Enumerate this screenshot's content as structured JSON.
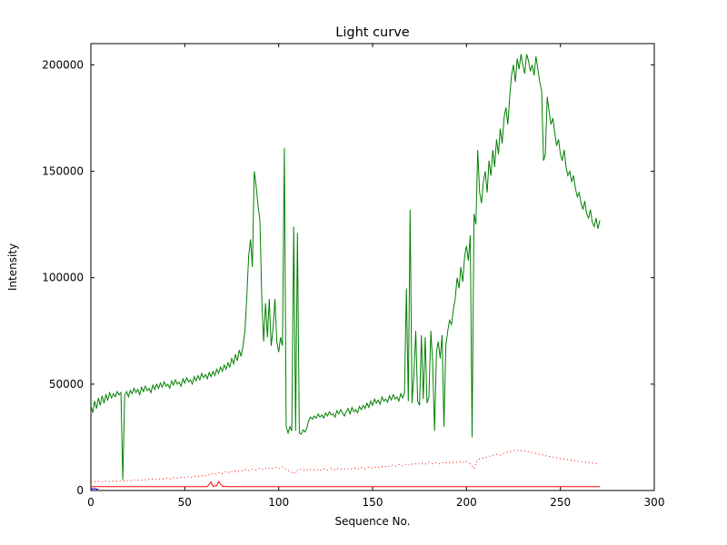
{
  "title": "Light curve",
  "chart_data": {
    "type": "line",
    "title": "Light curve",
    "xlabel": "Sequence No.",
    "ylabel": "Intensity",
    "xlim": [
      0,
      300
    ],
    "ylim": [
      0,
      210000
    ],
    "xticks": [
      0,
      50,
      100,
      150,
      200,
      250,
      300
    ],
    "yticks": [
      0,
      50000,
      100000,
      150000,
      200000
    ],
    "grid": false,
    "legend": null,
    "frame_color": "#000000",
    "background": "#ffffff",
    "series": [
      {
        "name": "main-intensity",
        "color": "#008000",
        "style": "solid",
        "x_start": 0,
        "x_step": 1,
        "y": [
          40000,
          36500,
          42000,
          38500,
          43500,
          40000,
          44500,
          41000,
          45000,
          42500,
          46000,
          43500,
          45500,
          44000,
          46500,
          45000,
          46000,
          5000,
          44500,
          46500,
          44000,
          47000,
          45500,
          48000,
          46000,
          47500,
          45000,
          48500,
          46500,
          49000,
          47000,
          48000,
          46000,
          49500,
          47500,
          50000,
          48000,
          50500,
          48500,
          51000,
          49000,
          50000,
          48000,
          51500,
          49500,
          52000,
          50000,
          51000,
          49000,
          52500,
          50500,
          53000,
          51000,
          52000,
          50000,
          53500,
          51500,
          54000,
          52000,
          55000,
          53000,
          54500,
          52500,
          55500,
          53500,
          56000,
          54000,
          57000,
          55000,
          58000,
          56000,
          59000,
          57000,
          60000,
          58000,
          62000,
          59500,
          64000,
          61000,
          66000,
          63000,
          68000,
          75000,
          90000,
          110000,
          118000,
          105000,
          150000,
          143000,
          134000,
          127000,
          90000,
          70000,
          88000,
          72000,
          90000,
          68000,
          76000,
          90000,
          70000,
          65000,
          72000,
          68000,
          161000,
          30000,
          27000,
          30000,
          28000,
          124000,
          28000,
          121000,
          27000,
          26500,
          28500,
          27500,
          29500,
          33000,
          34500,
          33500,
          35000,
          34000,
          36000,
          34500,
          35500,
          34000,
          36500,
          35000,
          37000,
          35500,
          36000,
          34500,
          37500,
          36000,
          38000,
          36500,
          35000,
          37000,
          38500,
          36000,
          39000,
          37000,
          38000,
          36500,
          39500,
          38000,
          40000,
          38500,
          41000,
          39000,
          42000,
          40000,
          43000,
          41000,
          42500,
          40500,
          44000,
          42000,
          43000,
          41500,
          44500,
          42500,
          45000,
          43000,
          44000,
          42000,
          45500,
          43500,
          46000,
          95000,
          42000,
          132000,
          41000,
          55000,
          75000,
          42000,
          40000,
          73000,
          43000,
          72000,
          41000,
          44000,
          75000,
          60000,
          28000,
          65000,
          70000,
          62000,
          73000,
          30000,
          68000,
          75000,
          80000,
          78000,
          85000,
          90000,
          100000,
          95000,
          105000,
          98000,
          110000,
          115000,
          108000,
          120000,
          25000,
          130000,
          125000,
          160000,
          140000,
          135000,
          145000,
          150000,
          140000,
          155000,
          148000,
          160000,
          152000,
          165000,
          158000,
          170000,
          163000,
          175000,
          180000,
          172000,
          185000,
          195000,
          200000,
          192000,
          203000,
          198000,
          205000,
          200000,
          196000,
          205000,
          202000,
          197000,
          200000,
          195000,
          204000,
          198000,
          192000,
          188000,
          155000,
          158000,
          185000,
          178000,
          172000,
          175000,
          168000,
          162000,
          165000,
          158000,
          155000,
          160000,
          152000,
          148000,
          150000,
          145000,
          148000,
          142000,
          138000,
          140000,
          135000,
          132000,
          136000,
          130000,
          128000,
          132000,
          126000,
          124000,
          128000,
          123000,
          127000
        ]
      },
      {
        "name": "secondary-dotted",
        "color": "#ff0000",
        "style": "dotted",
        "x_start": 0,
        "x_step": 2,
        "y": [
          4200,
          4000,
          4300,
          4100,
          4400,
          4200,
          4500,
          4300,
          4600,
          4400,
          4800,
          4600,
          5000,
          4800,
          5200,
          5000,
          5400,
          5100,
          5500,
          5300,
          5700,
          5500,
          6000,
          5800,
          6200,
          6000,
          6500,
          6200,
          6800,
          6500,
          7200,
          7000,
          8000,
          7500,
          8500,
          8000,
          9000,
          8300,
          9500,
          8800,
          9200,
          9800,
          9400,
          10000,
          9600,
          10500,
          9800,
          10800,
          10200,
          11000,
          10400,
          11200,
          10000,
          9000,
          7800,
          9500,
          10000,
          9200,
          10200,
          9500,
          10000,
          9300,
          10100,
          9600,
          10300,
          9700,
          10400,
          9800,
          10500,
          9900,
          10600,
          10000,
          10800,
          10200,
          11000,
          10500,
          11200,
          10800,
          11500,
          11000,
          12000,
          11400,
          12200,
          11600,
          12500,
          11800,
          12800,
          12200,
          13000,
          12400,
          13200,
          12600,
          13000,
          12500,
          13300,
          12800,
          13500,
          13000,
          13600,
          13200,
          13800,
          12500,
          10200,
          14500,
          15000,
          15500,
          16000,
          16500,
          17000,
          16600,
          17500,
          18000,
          18500,
          19000,
          18600,
          18800,
          18300,
          18000,
          17600,
          17200,
          16800,
          16400,
          16000,
          15700,
          15400,
          15000,
          14700,
          14400,
          14200,
          14000,
          13700,
          13500,
          13200,
          13000,
          12800,
          12600
        ]
      },
      {
        "name": "baseline-solid",
        "color": "#ff0000",
        "style": "solid",
        "x": [
          0,
          55,
          62,
          64,
          65,
          67,
          68,
          70,
          72,
          271
        ],
        "y": [
          1800,
          1800,
          1800,
          4000,
          2000,
          2200,
          4200,
          2000,
          1800,
          1800
        ]
      },
      {
        "name": "start-marker",
        "color": "#0000ff",
        "style": "solid",
        "x": [
          0,
          1,
          2,
          3,
          4
        ],
        "y": [
          1200,
          600,
          1000,
          500,
          800
        ]
      }
    ]
  }
}
